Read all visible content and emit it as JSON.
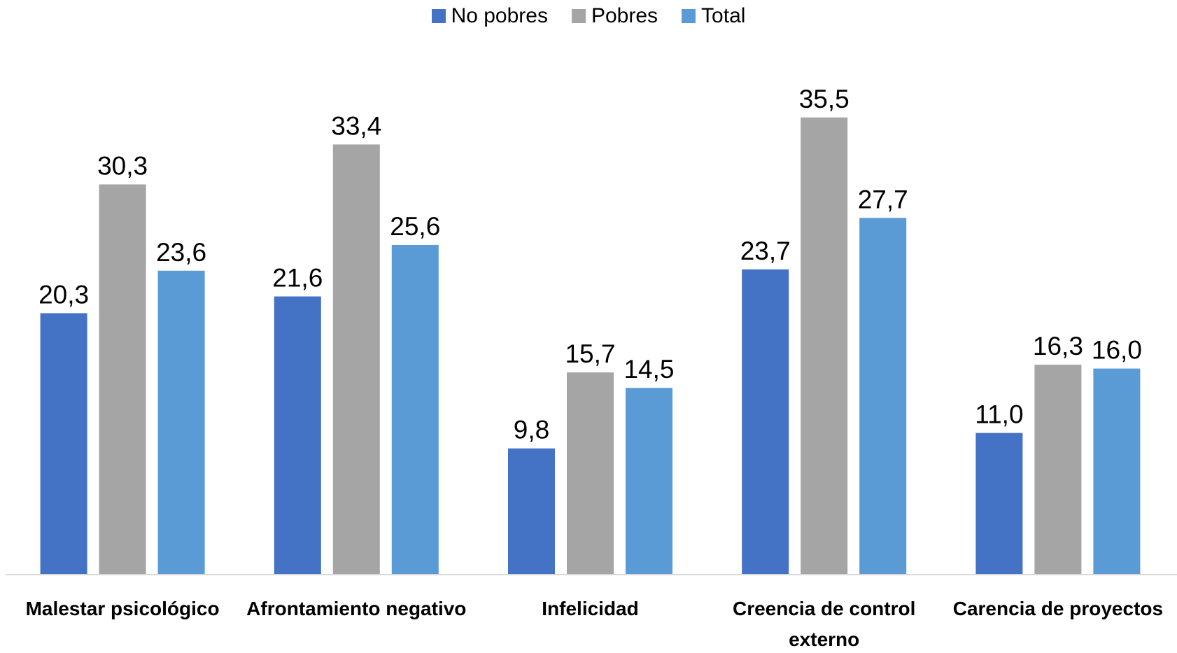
{
  "chart_data": {
    "type": "bar",
    "categories": [
      "Malestar psicológico",
      "Afrontamiento negativo",
      "Infelicidad",
      "Creencia de control externo",
      "Carencia de proyectos"
    ],
    "series": [
      {
        "name": "No pobres",
        "color": "#4472c4",
        "values": [
          20.3,
          21.6,
          9.8,
          23.7,
          11.0
        ],
        "value_labels": [
          "20,3",
          "21,6",
          "9,8",
          "23,7",
          "11,0"
        ]
      },
      {
        "name": "Pobres",
        "color": "#a5a5a5",
        "values": [
          30.3,
          33.4,
          15.7,
          35.5,
          16.3
        ],
        "value_labels": [
          "30,3",
          "33,4",
          "15,7",
          "35,5",
          "16,3"
        ]
      },
      {
        "name": "Total",
        "color": "#5b9bd5",
        "values": [
          23.6,
          25.6,
          14.5,
          27.7,
          16.0
        ],
        "value_labels": [
          "23,6",
          "25,6",
          "14,5",
          "27,7",
          "16,0"
        ]
      }
    ],
    "legend": "top"
  }
}
